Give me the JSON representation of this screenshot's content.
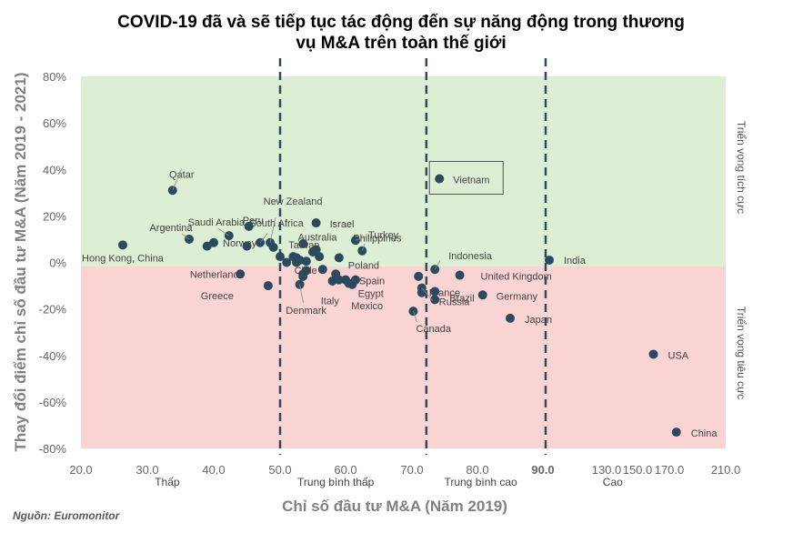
{
  "chart_data": {
    "type": "scatter",
    "title_lines": [
      "COVID-19 đã và sẽ tiếp tục tác động đến sự năng động trong thương",
      "vụ M&A trên toàn thế giới"
    ],
    "xlabel": "Chỉ số đầu tư M&A (Năm 2019)",
    "ylabel": "Thay đổi điểm chỉ số đầu tư M&A (Năm 2019 - 2021)",
    "x_tick_labels": [
      "20.0",
      "30.0",
      "40.0",
      "50.0",
      "60.0",
      "70.0",
      "80.0",
      "90.0",
      "130.0",
      "150.0",
      "170.0",
      "210.0"
    ],
    "x_tick_values": [
      20,
      30,
      40,
      50,
      60,
      70,
      80,
      90,
      130,
      150,
      170,
      210
    ],
    "x_scale": "piecewise: 20–90 linear, then 130/150/170/210 at equal spacing",
    "y_tick_labels": [
      "80%",
      "60%",
      "40%",
      "20%",
      "0%",
      "-20%",
      "-40%",
      "-60%",
      "-80%"
    ],
    "y_tick_values": [
      80,
      60,
      40,
      20,
      0,
      -20,
      -40,
      -60,
      -80
    ],
    "ylim": [
      -80,
      80
    ],
    "zone_labels": [
      {
        "text": "Thấp",
        "x": 33
      },
      {
        "text": "Trung bình thấp",
        "x": 58.5
      },
      {
        "text": "Trung bình cao",
        "x": 80.5
      },
      {
        "text": "Cao",
        "x": 134
      }
    ],
    "zone_dividers_x": [
      50,
      72.2,
      91.7
    ],
    "outlook_labels": {
      "positive": "Triển vọng tích cực",
      "negative": "Triển vọng tiêu cực"
    },
    "background_colors": {
      "positive": "#dcefd5",
      "negative": "#fad3d3"
    },
    "point_color": "#2c4a5e",
    "divider_color": "#2e4a5e",
    "highlighted": "Vietnam",
    "points": [
      {
        "name": "Qatar",
        "x": 33.8,
        "y": 31
      },
      {
        "name": "Hong Kong, China",
        "x": 26.3,
        "y": 7.5
      },
      {
        "name": "Argentina",
        "x": 36.3,
        "y": 10
      },
      {
        "name": "Saudi Arabia",
        "x": 42.3,
        "y": 11.5
      },
      {
        "name": "Norway",
        "x": 40,
        "y": 8.5
      },
      {
        "name": "Peru",
        "x": 45.3,
        "y": 15.5
      },
      {
        "name": "New Zealand",
        "x": 48.5,
        "y": 8.5
      },
      {
        "name": "South Africa",
        "x": 47,
        "y": 8.5
      },
      {
        "name": "Taiwan",
        "x": 53.5,
        "y": 8
      },
      {
        "name": "Israel",
        "x": 55.5,
        "y": 17
      },
      {
        "name": "Australia",
        "x": 55.5,
        "y": 5.5
      },
      {
        "name": "Turkey",
        "x": 61.5,
        "y": 9.5
      },
      {
        "name": "Philippines",
        "x": 62.5,
        "y": 5
      },
      {
        "name": "Poland",
        "x": 59,
        "y": 2
      },
      {
        "name": "Chile",
        "x": 53,
        "y": 1
      },
      {
        "name": "Spain",
        "x": 61.5,
        "y": -7.5
      },
      {
        "name": "Netherlands",
        "x": 44,
        "y": -5
      },
      {
        "name": "Greece",
        "x": 48.2,
        "y": -10
      },
      {
        "name": "Denmark",
        "x": 53,
        "y": -9.5
      },
      {
        "name": "Italy",
        "x": 59,
        "y": -7.5
      },
      {
        "name": "Egypt",
        "x": 60.5,
        "y": -9
      },
      {
        "name": "Mexico",
        "x": 61,
        "y": -9.5
      },
      {
        "name": "Vietnam",
        "x": 74.2,
        "y": 36
      },
      {
        "name": "Indonesia",
        "x": 73.5,
        "y": -3
      },
      {
        "name": "France",
        "x": 71.5,
        "y": -13
      },
      {
        "name": "Brazil",
        "x": 73.5,
        "y": -16
      },
      {
        "name": "Russia",
        "x": 71.5,
        "y": -11
      },
      {
        "name": "Canada",
        "x": 70.2,
        "y": -21
      },
      {
        "name": "United Kingdom",
        "x": 77.3,
        "y": -5.5
      },
      {
        "name": "Germany",
        "x": 80.8,
        "y": -14
      },
      {
        "name": "Japan",
        "x": 85,
        "y": -24
      },
      {
        "name": "India",
        "x": 94,
        "y": 1
      },
      {
        "name": "USA",
        "x": 160,
        "y": -39.5
      },
      {
        "name": "China",
        "x": 175,
        "y": -73
      }
    ],
    "unlabeled_points": [
      {
        "x": 39,
        "y": 7
      },
      {
        "x": 45,
        "y": 7
      },
      {
        "x": 49,
        "y": 6.5
      },
      {
        "x": 51,
        "y": 0
      },
      {
        "x": 50,
        "y": 2.5
      },
      {
        "x": 52,
        "y": 2.5
      },
      {
        "x": 52.5,
        "y": 0
      },
      {
        "x": 54,
        "y": 0.5
      },
      {
        "x": 55,
        "y": 4.5
      },
      {
        "x": 56,
        "y": 2.5
      },
      {
        "x": 53.5,
        "y": -5
      },
      {
        "x": 56.5,
        "y": -3
      },
      {
        "x": 54,
        "y": -3.5
      },
      {
        "x": 58.5,
        "y": -5
      },
      {
        "x": 52.5,
        "y": 2
      },
      {
        "x": 53.5,
        "y": -6
      },
      {
        "x": 60,
        "y": -7.5
      },
      {
        "x": 58,
        "y": -8
      },
      {
        "x": 73.5,
        "y": -12.5
      },
      {
        "x": 71,
        "y": -6
      }
    ]
  },
  "source": "Nguồn: Euromonitor"
}
